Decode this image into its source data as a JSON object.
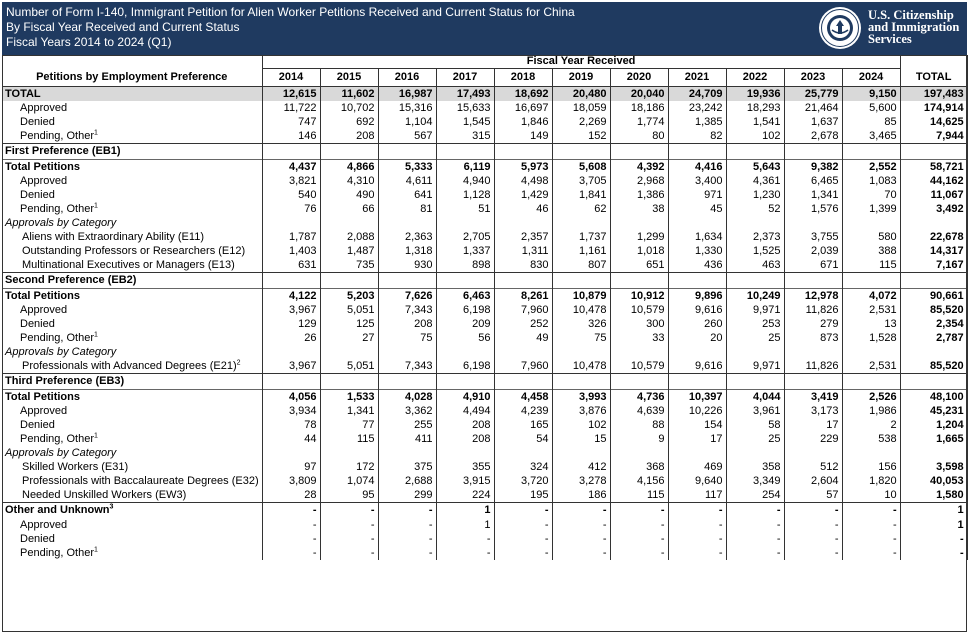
{
  "header": {
    "title_lines": [
      "Number of Form I-140, Immigrant Petition for Alien Worker Petitions Received and Current Status for China",
      "By Fiscal Year Received and Current Status",
      "Fiscal Years 2014 to 2024 (Q1)"
    ],
    "agency_lines": [
      "U.S. Citizenship",
      "and Immigration",
      "Services"
    ],
    "seal_icon": "dhs-seal-icon"
  },
  "table": {
    "row_header": "Petitions by Employment Preference",
    "fiscal_year_header": "Fiscal Year Received",
    "years": [
      "2014",
      "2015",
      "2016",
      "2017",
      "2018",
      "2019",
      "2020",
      "2021",
      "2022",
      "2023",
      "2024"
    ],
    "total_header": "TOTAL",
    "rows": [
      {
        "type": "group",
        "label": "TOTAL",
        "values": [
          "12,615",
          "11,602",
          "16,987",
          "17,493",
          "18,692",
          "20,480",
          "20,040",
          "24,709",
          "19,936",
          "25,779",
          "9,150"
        ],
        "total": "197,483"
      },
      {
        "type": "data",
        "label": "Approved",
        "values": [
          "11,722",
          "10,702",
          "15,316",
          "15,633",
          "16,697",
          "18,059",
          "18,186",
          "23,242",
          "18,293",
          "21,464",
          "5,600"
        ],
        "total": "174,914"
      },
      {
        "type": "data",
        "label": "Denied",
        "values": [
          "747",
          "692",
          "1,104",
          "1,545",
          "1,846",
          "2,269",
          "1,774",
          "1,385",
          "1,541",
          "1,637",
          "85"
        ],
        "total": "14,625"
      },
      {
        "type": "data",
        "label": "Pending, Other",
        "sup": "1",
        "values": [
          "146",
          "208",
          "567",
          "315",
          "149",
          "152",
          "80",
          "82",
          "102",
          "2,678",
          "3,465"
        ],
        "total": "7,944"
      },
      {
        "type": "section",
        "label": "First Preference (EB1)"
      },
      {
        "type": "subgroup",
        "label": "Total Petitions",
        "values": [
          "4,437",
          "4,866",
          "5,333",
          "6,119",
          "5,973",
          "5,608",
          "4,392",
          "4,416",
          "5,643",
          "9,382",
          "2,552"
        ],
        "total": "58,721"
      },
      {
        "type": "data",
        "label": "Approved",
        "values": [
          "3,821",
          "4,310",
          "4,611",
          "4,940",
          "4,498",
          "3,705",
          "2,968",
          "3,400",
          "4,361",
          "6,465",
          "1,083"
        ],
        "total": "44,162"
      },
      {
        "type": "data",
        "label": "Denied",
        "values": [
          "540",
          "490",
          "641",
          "1,128",
          "1,429",
          "1,841",
          "1,386",
          "971",
          "1,230",
          "1,341",
          "70"
        ],
        "total": "11,067"
      },
      {
        "type": "data",
        "label": "Pending, Other",
        "sup": "1",
        "values": [
          "76",
          "66",
          "81",
          "51",
          "46",
          "62",
          "38",
          "45",
          "52",
          "1,576",
          "1,399"
        ],
        "total": "3,492"
      },
      {
        "type": "cat",
        "label": "Approvals by Category"
      },
      {
        "type": "catdata",
        "label": "Aliens with Extraordinary Ability (E11)",
        "values": [
          "1,787",
          "2,088",
          "2,363",
          "2,705",
          "2,357",
          "1,737",
          "1,299",
          "1,634",
          "2,373",
          "3,755",
          "580"
        ],
        "total": "22,678"
      },
      {
        "type": "catdata",
        "label": "Outstanding Professors or Researchers (E12)",
        "values": [
          "1,403",
          "1,487",
          "1,318",
          "1,337",
          "1,311",
          "1,161",
          "1,018",
          "1,330",
          "1,525",
          "2,039",
          "388"
        ],
        "total": "14,317"
      },
      {
        "type": "catdata",
        "label": "Multinational Executives or Managers (E13)",
        "values": [
          "631",
          "735",
          "930",
          "898",
          "830",
          "807",
          "651",
          "436",
          "463",
          "671",
          "115"
        ],
        "total": "7,167"
      },
      {
        "type": "section",
        "label": "Second Preference (EB2)"
      },
      {
        "type": "subgroup",
        "label": "Total Petitions",
        "values": [
          "4,122",
          "5,203",
          "7,626",
          "6,463",
          "8,261",
          "10,879",
          "10,912",
          "9,896",
          "10,249",
          "12,978",
          "4,072"
        ],
        "total": "90,661"
      },
      {
        "type": "data",
        "label": "Approved",
        "values": [
          "3,967",
          "5,051",
          "7,343",
          "6,198",
          "7,960",
          "10,478",
          "10,579",
          "9,616",
          "9,971",
          "11,826",
          "2,531"
        ],
        "total": "85,520"
      },
      {
        "type": "data",
        "label": "Denied",
        "values": [
          "129",
          "125",
          "208",
          "209",
          "252",
          "326",
          "300",
          "260",
          "253",
          "279",
          "13"
        ],
        "total": "2,354"
      },
      {
        "type": "data",
        "label": "Pending, Other",
        "sup": "1",
        "values": [
          "26",
          "27",
          "75",
          "56",
          "49",
          "75",
          "33",
          "20",
          "25",
          "873",
          "1,528"
        ],
        "total": "2,787"
      },
      {
        "type": "cat",
        "label": "Approvals by Category"
      },
      {
        "type": "catdata",
        "label": "Professionals with Advanced Degrees (E21)",
        "sup": "2",
        "values": [
          "3,967",
          "5,051",
          "7,343",
          "6,198",
          "7,960",
          "10,478",
          "10,579",
          "9,616",
          "9,971",
          "11,826",
          "2,531"
        ],
        "total": "85,520"
      },
      {
        "type": "section",
        "label": "Third Preference (EB3)"
      },
      {
        "type": "subgroup",
        "label": "Total Petitions",
        "values": [
          "4,056",
          "1,533",
          "4,028",
          "4,910",
          "4,458",
          "3,993",
          "4,736",
          "10,397",
          "4,044",
          "3,419",
          "2,526"
        ],
        "total": "48,100"
      },
      {
        "type": "data",
        "label": "Approved",
        "values": [
          "3,934",
          "1,341",
          "3,362",
          "4,494",
          "4,239",
          "3,876",
          "4,639",
          "10,226",
          "3,961",
          "3,173",
          "1,986"
        ],
        "total": "45,231"
      },
      {
        "type": "data",
        "label": "Denied",
        "values": [
          "78",
          "77",
          "255",
          "208",
          "165",
          "102",
          "88",
          "154",
          "58",
          "17",
          "2"
        ],
        "total": "1,204"
      },
      {
        "type": "data",
        "label": "Pending, Other",
        "sup": "1",
        "values": [
          "44",
          "115",
          "411",
          "208",
          "54",
          "15",
          "9",
          "17",
          "25",
          "229",
          "538"
        ],
        "total": "1,665"
      },
      {
        "type": "cat",
        "label": "Approvals by Category"
      },
      {
        "type": "catdata",
        "label": "Skilled Workers (E31)",
        "values": [
          "97",
          "172",
          "375",
          "355",
          "324",
          "412",
          "368",
          "469",
          "358",
          "512",
          "156"
        ],
        "total": "3,598"
      },
      {
        "type": "catdata",
        "label": "Professionals with Baccalaureate Degrees (E32)",
        "values": [
          "3,809",
          "1,074",
          "2,688",
          "3,915",
          "3,720",
          "3,278",
          "4,156",
          "9,640",
          "3,349",
          "2,604",
          "1,820"
        ],
        "total": "40,053"
      },
      {
        "type": "catdata",
        "label": "Needed Unskilled Workers (EW3)",
        "values": [
          "28",
          "95",
          "299",
          "224",
          "195",
          "186",
          "115",
          "117",
          "254",
          "57",
          "10"
        ],
        "total": "1,580"
      },
      {
        "type": "section",
        "label": "Other and Unknown",
        "sup": "3",
        "values": [
          "-",
          "-",
          "-",
          "1",
          "-",
          "-",
          "-",
          "-",
          "-",
          "-",
          "-"
        ],
        "total": "1"
      },
      {
        "type": "data",
        "label": "Approved",
        "values": [
          "-",
          "-",
          "-",
          "1",
          "-",
          "-",
          "-",
          "-",
          "-",
          "-",
          "-"
        ],
        "total": "1"
      },
      {
        "type": "data",
        "label": "Denied",
        "values": [
          "-",
          "-",
          "-",
          "-",
          "-",
          "-",
          "-",
          "-",
          "-",
          "-",
          "-"
        ],
        "total": "-"
      },
      {
        "type": "data",
        "label": "Pending, Other",
        "sup": "1",
        "values": [
          "-",
          "-",
          "-",
          "-",
          "-",
          "-",
          "-",
          "-",
          "-",
          "-",
          "-"
        ],
        "total": "-"
      }
    ]
  }
}
